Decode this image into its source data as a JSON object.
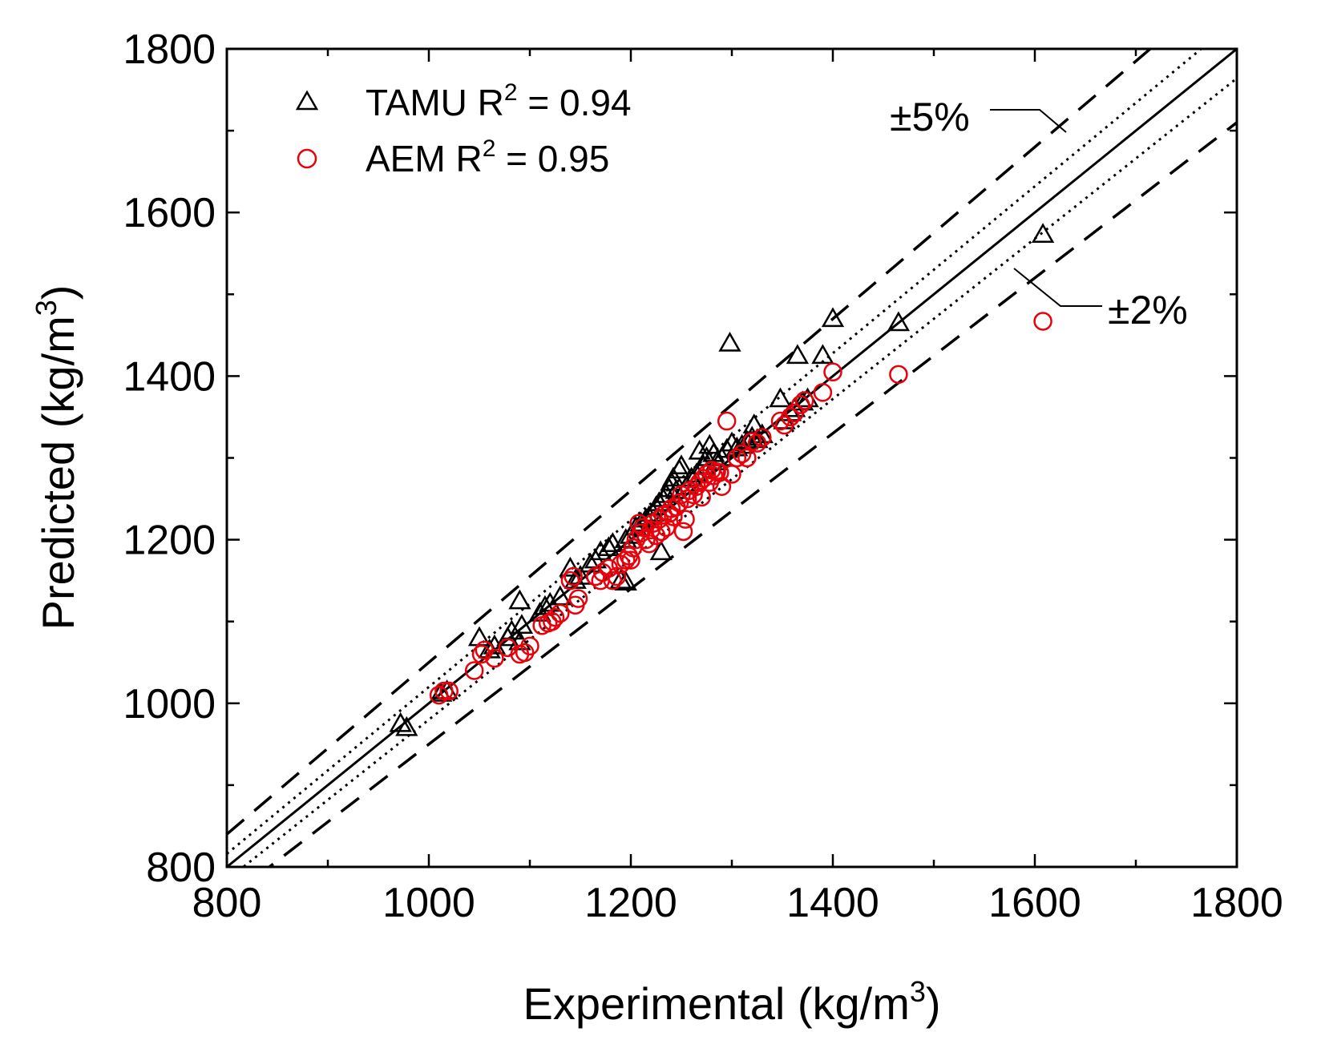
{
  "chart_data": {
    "type": "scatter",
    "title": "",
    "xlabel": "Experimental (kg/m",
    "xlabel_sup": "3",
    "xlabel_end": ")",
    "ylabel": "Predicted (kg/m",
    "ylabel_sup": "3",
    "ylabel_end": ")",
    "xlim": [
      800,
      1800
    ],
    "ylim": [
      800,
      1800
    ],
    "x_ticks": [
      800,
      1000,
      1200,
      1400,
      1600,
      1800
    ],
    "y_ticks": [
      800,
      1000,
      1200,
      1400,
      1600,
      1800
    ],
    "x_tick_labels": [
      "800",
      "1000",
      "1200",
      "1400",
      "1600",
      "1800"
    ],
    "y_tick_labels": [
      "800",
      "1000",
      "1200",
      "1400",
      "1600",
      "1800"
    ],
    "grid": false,
    "legend_position": "top-left",
    "reference_lines": [
      {
        "name": "1:1",
        "factor": 1.0,
        "style": "solid"
      },
      {
        "name": "+2%",
        "factor": 1.02,
        "style": "dotted"
      },
      {
        "name": "-2%",
        "factor": 0.98,
        "style": "dotted"
      },
      {
        "name": "+5%",
        "factor": 1.05,
        "style": "dashed"
      },
      {
        "name": "-5%",
        "factor": 0.95,
        "style": "dashed"
      }
    ],
    "annotations": [
      {
        "text": "±5%",
        "near": "upper dashed line"
      },
      {
        "text": "±2%",
        "near": "lower dotted line"
      }
    ],
    "series": [
      {
        "name": "TAMU",
        "legend_label": "TAMU R",
        "legend_sup": "2",
        "legend_value": " = 0.94",
        "marker": "triangle",
        "color": "#000000",
        "points": [
          [
            972,
            975
          ],
          [
            978,
            970
          ],
          [
            1012,
            1012
          ],
          [
            1018,
            1015
          ],
          [
            1050,
            1080
          ],
          [
            1060,
            1065
          ],
          [
            1065,
            1070
          ],
          [
            1078,
            1080
          ],
          [
            1082,
            1088
          ],
          [
            1090,
            1125
          ],
          [
            1090,
            1075
          ],
          [
            1092,
            1095
          ],
          [
            1110,
            1110
          ],
          [
            1115,
            1118
          ],
          [
            1120,
            1122
          ],
          [
            1130,
            1130
          ],
          [
            1140,
            1165
          ],
          [
            1145,
            1150
          ],
          [
            1150,
            1155
          ],
          [
            1160,
            1170
          ],
          [
            1165,
            1175
          ],
          [
            1170,
            1185
          ],
          [
            1178,
            1190
          ],
          [
            1182,
            1195
          ],
          [
            1190,
            1150
          ],
          [
            1195,
            1148
          ],
          [
            1195,
            1200
          ],
          [
            1200,
            1205
          ],
          [
            1205,
            1215
          ],
          [
            1210,
            1220
          ],
          [
            1215,
            1225
          ],
          [
            1218,
            1228
          ],
          [
            1222,
            1232
          ],
          [
            1225,
            1240
          ],
          [
            1228,
            1245
          ],
          [
            1230,
            1185
          ],
          [
            1232,
            1250
          ],
          [
            1235,
            1255
          ],
          [
            1238,
            1262
          ],
          [
            1240,
            1270
          ],
          [
            1242,
            1275
          ],
          [
            1245,
            1260
          ],
          [
            1248,
            1285
          ],
          [
            1250,
            1290
          ],
          [
            1255,
            1265
          ],
          [
            1260,
            1275
          ],
          [
            1265,
            1280
          ],
          [
            1268,
            1308
          ],
          [
            1272,
            1290
          ],
          [
            1275,
            1300
          ],
          [
            1278,
            1315
          ],
          [
            1282,
            1305
          ],
          [
            1285,
            1295
          ],
          [
            1290,
            1300
          ],
          [
            1295,
            1310
          ],
          [
            1298,
            1440
          ],
          [
            1300,
            1318
          ],
          [
            1305,
            1312
          ],
          [
            1310,
            1315
          ],
          [
            1315,
            1320
          ],
          [
            1320,
            1325
          ],
          [
            1322,
            1340
          ],
          [
            1325,
            1322
          ],
          [
            1330,
            1328
          ],
          [
            1348,
            1372
          ],
          [
            1352,
            1345
          ],
          [
            1358,
            1355
          ],
          [
            1362,
            1360
          ],
          [
            1365,
            1425
          ],
          [
            1370,
            1368
          ],
          [
            1375,
            1372
          ],
          [
            1390,
            1425
          ],
          [
            1400,
            1470
          ],
          [
            1465,
            1465
          ],
          [
            1608,
            1573
          ]
        ]
      },
      {
        "name": "AEM",
        "legend_label": "AEM  R",
        "legend_sup": "2",
        "legend_value": " = 0.95",
        "marker": "circle",
        "color": "#e8000b",
        "points": [
          [
            1010,
            1010
          ],
          [
            1015,
            1015
          ],
          [
            1020,
            1015
          ],
          [
            1045,
            1040
          ],
          [
            1052,
            1060
          ],
          [
            1055,
            1065
          ],
          [
            1065,
            1055
          ],
          [
            1078,
            1068
          ],
          [
            1090,
            1060
          ],
          [
            1095,
            1062
          ],
          [
            1100,
            1070
          ],
          [
            1112,
            1095
          ],
          [
            1118,
            1098
          ],
          [
            1122,
            1100
          ],
          [
            1125,
            1105
          ],
          [
            1130,
            1110
          ],
          [
            1140,
            1150
          ],
          [
            1143,
            1155
          ],
          [
            1145,
            1120
          ],
          [
            1148,
            1128
          ],
          [
            1165,
            1155
          ],
          [
            1170,
            1150
          ],
          [
            1172,
            1160
          ],
          [
            1178,
            1165
          ],
          [
            1182,
            1150
          ],
          [
            1186,
            1155
          ],
          [
            1190,
            1170
          ],
          [
            1195,
            1175
          ],
          [
            1198,
            1180
          ],
          [
            1200,
            1175
          ],
          [
            1202,
            1190
          ],
          [
            1205,
            1200
          ],
          [
            1208,
            1220
          ],
          [
            1210,
            1208
          ],
          [
            1212,
            1215
          ],
          [
            1215,
            1200
          ],
          [
            1218,
            1195
          ],
          [
            1220,
            1212
          ],
          [
            1222,
            1220
          ],
          [
            1225,
            1205
          ],
          [
            1228,
            1225
          ],
          [
            1230,
            1210
          ],
          [
            1232,
            1230
          ],
          [
            1235,
            1215
          ],
          [
            1238,
            1232
          ],
          [
            1240,
            1238
          ],
          [
            1242,
            1228
          ],
          [
            1245,
            1240
          ],
          [
            1248,
            1245
          ],
          [
            1250,
            1255
          ],
          [
            1252,
            1210
          ],
          [
            1254,
            1225
          ],
          [
            1256,
            1250
          ],
          [
            1258,
            1260
          ],
          [
            1262,
            1255
          ],
          [
            1265,
            1265
          ],
          [
            1268,
            1270
          ],
          [
            1270,
            1252
          ],
          [
            1272,
            1275
          ],
          [
            1275,
            1280
          ],
          [
            1278,
            1270
          ],
          [
            1280,
            1285
          ],
          [
            1282,
            1278
          ],
          [
            1285,
            1283
          ],
          [
            1288,
            1282
          ],
          [
            1290,
            1265
          ],
          [
            1295,
            1345
          ],
          [
            1300,
            1280
          ],
          [
            1305,
            1300
          ],
          [
            1310,
            1305
          ],
          [
            1315,
            1300
          ],
          [
            1320,
            1320
          ],
          [
            1325,
            1318
          ],
          [
            1330,
            1325
          ],
          [
            1348,
            1345
          ],
          [
            1352,
            1340
          ],
          [
            1358,
            1350
          ],
          [
            1362,
            1355
          ],
          [
            1368,
            1365
          ],
          [
            1372,
            1370
          ],
          [
            1390,
            1380
          ],
          [
            1400,
            1405
          ],
          [
            1465,
            1402
          ],
          [
            1608,
            1467
          ]
        ]
      }
    ]
  }
}
